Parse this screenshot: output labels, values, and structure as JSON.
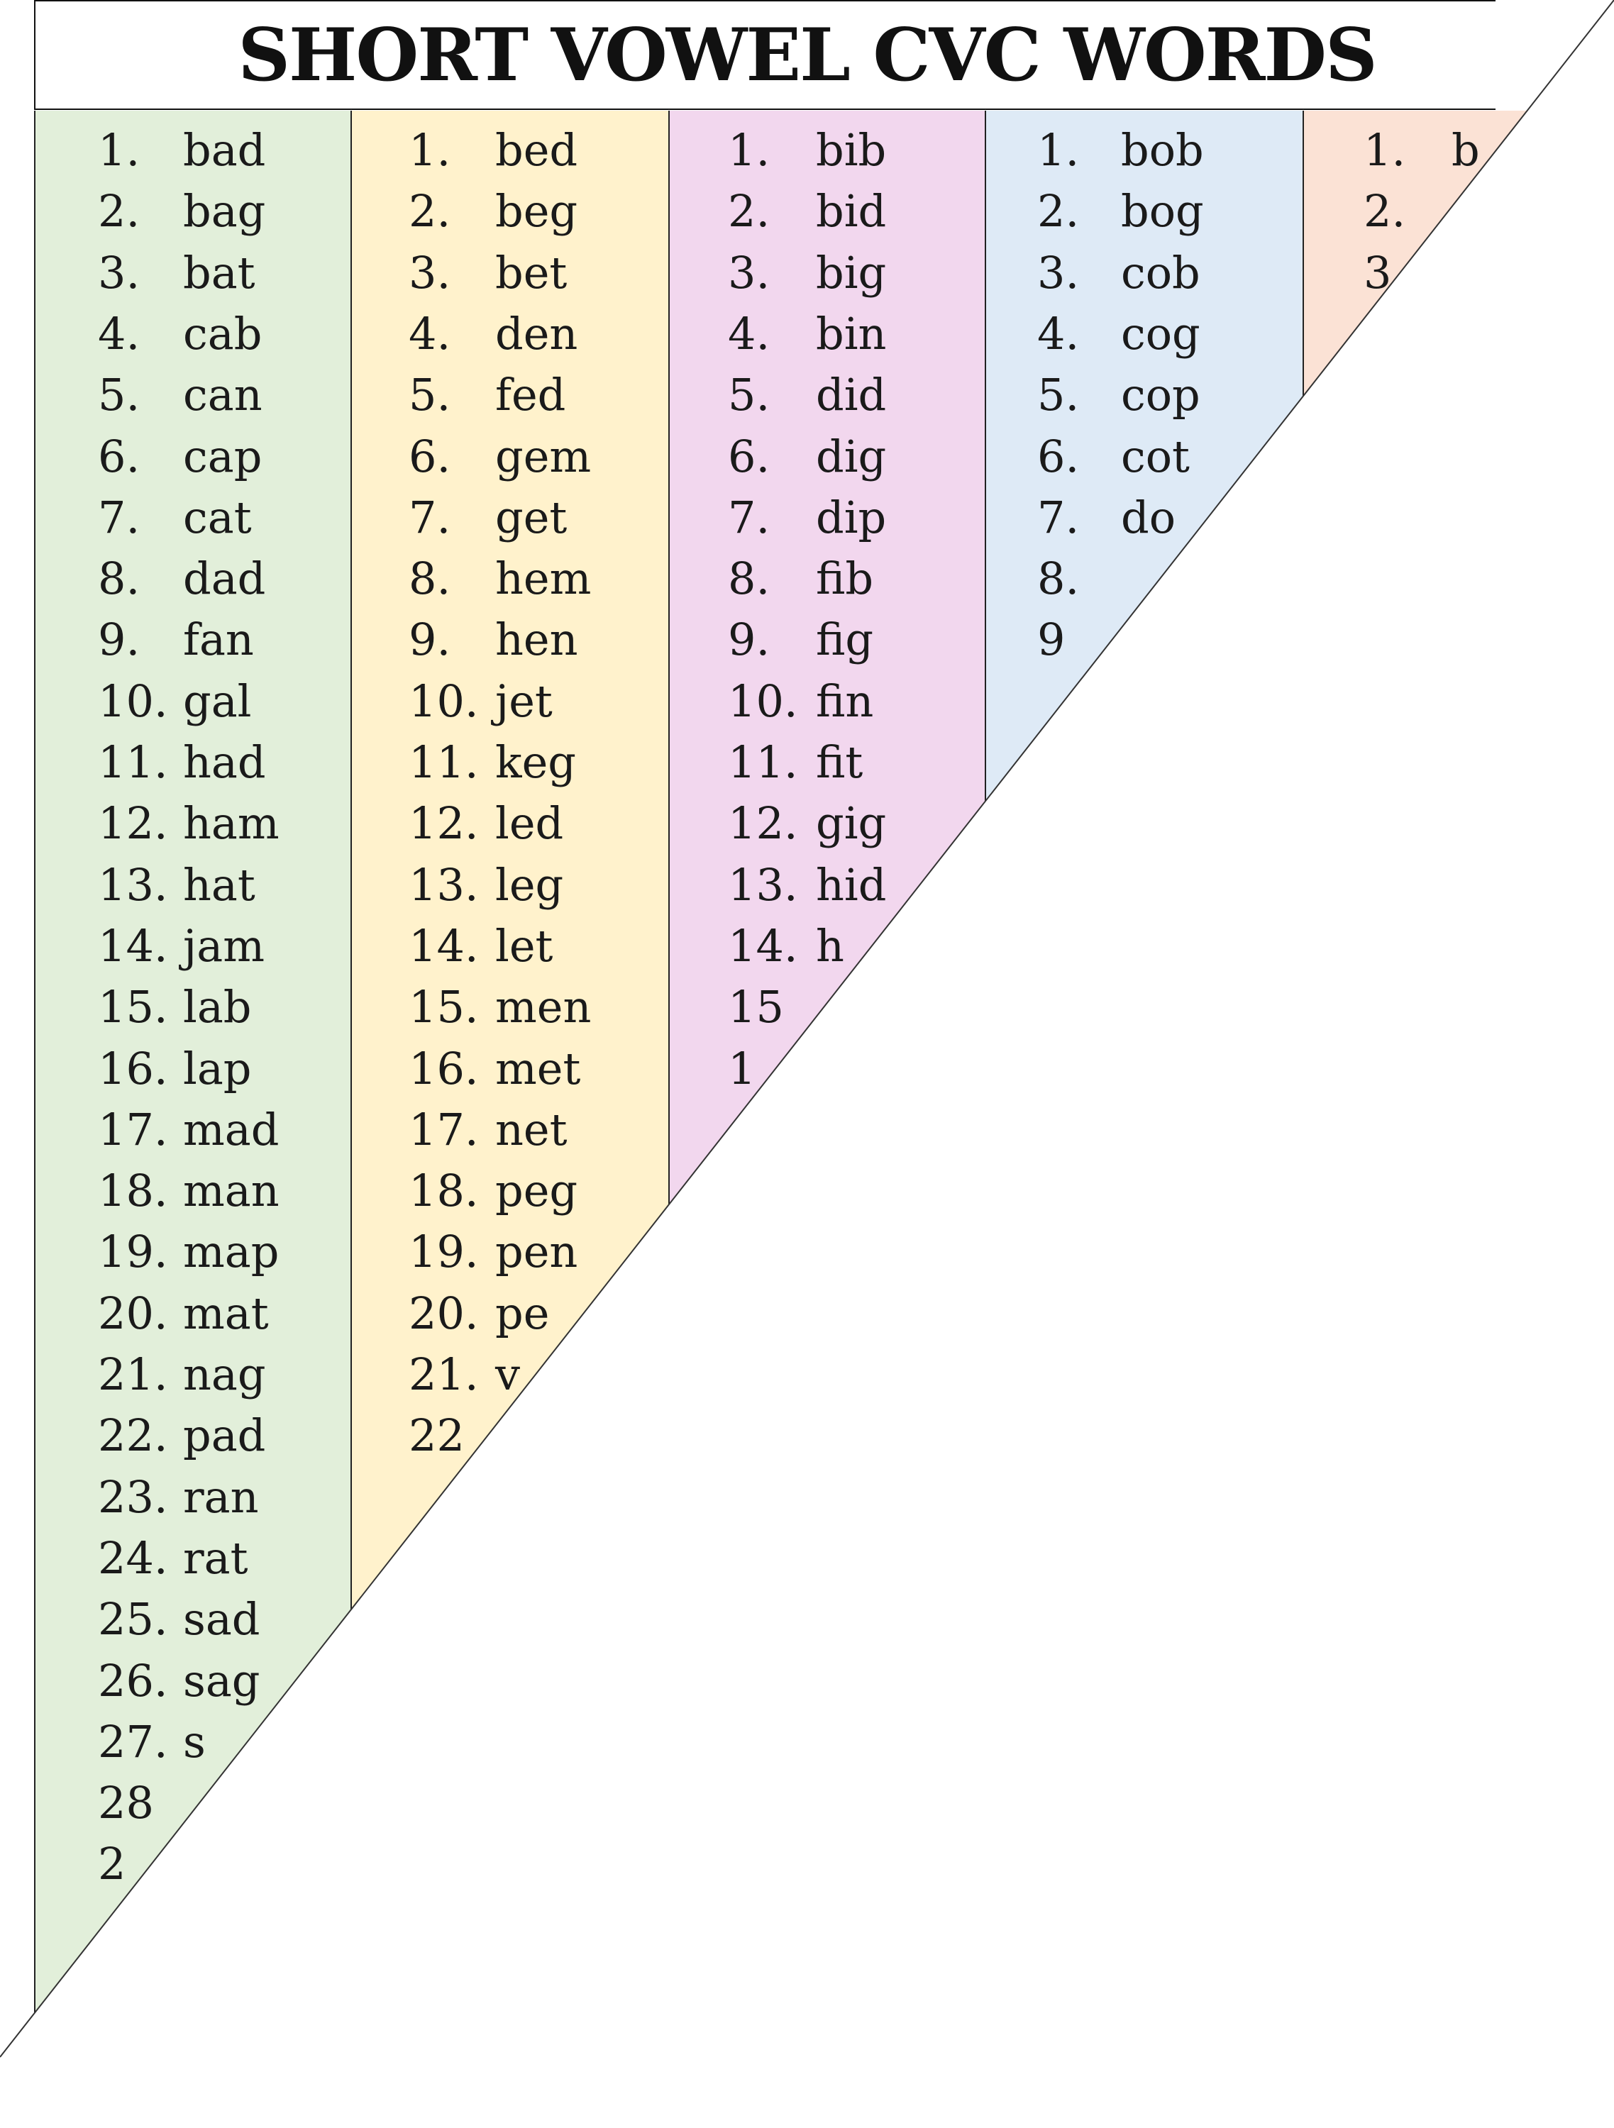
{
  "title": "SHORT VOWEL CVC WORDS",
  "colors": {
    "col_a": "#e2efda",
    "col_e": "#fff2cc",
    "col_i": "#f2d7ee",
    "col_o": "#deeaf6",
    "col_u": "#fbe2d5"
  },
  "columns": [
    {
      "id": "col-a",
      "color": "#e2efda",
      "items": [
        {
          "n": "1.",
          "w": "bad"
        },
        {
          "n": "2.",
          "w": "bag"
        },
        {
          "n": "3.",
          "w": "bat"
        },
        {
          "n": "4.",
          "w": "cab"
        },
        {
          "n": "5.",
          "w": "can"
        },
        {
          "n": "6.",
          "w": "cap"
        },
        {
          "n": "7.",
          "w": "cat"
        },
        {
          "n": "8.",
          "w": "dad"
        },
        {
          "n": "9.",
          "w": "fan"
        },
        {
          "n": "10.",
          "w": "gal"
        },
        {
          "n": "11.",
          "w": "had"
        },
        {
          "n": "12.",
          "w": "ham"
        },
        {
          "n": "13.",
          "w": "hat"
        },
        {
          "n": "14.",
          "w": "jam"
        },
        {
          "n": "15.",
          "w": "lab"
        },
        {
          "n": "16.",
          "w": "lap"
        },
        {
          "n": "17.",
          "w": "mad"
        },
        {
          "n": "18.",
          "w": "man"
        },
        {
          "n": "19.",
          "w": "map"
        },
        {
          "n": "20.",
          "w": "mat"
        },
        {
          "n": "21.",
          "w": "nag"
        },
        {
          "n": "22.",
          "w": "pad"
        },
        {
          "n": "23.",
          "w": "ran"
        },
        {
          "n": "24.",
          "w": "rat"
        },
        {
          "n": "25.",
          "w": "sad"
        },
        {
          "n": "26.",
          "w": "sag"
        },
        {
          "n": "27.",
          "w": "s"
        },
        {
          "n": "28",
          "w": ""
        },
        {
          "n": "2",
          "w": ""
        }
      ]
    },
    {
      "id": "col-e",
      "color": "#fff2cc",
      "items": [
        {
          "n": "1.",
          "w": "bed"
        },
        {
          "n": "2.",
          "w": "beg"
        },
        {
          "n": "3.",
          "w": "bet"
        },
        {
          "n": "4.",
          "w": "den"
        },
        {
          "n": "5.",
          "w": "fed"
        },
        {
          "n": "6.",
          "w": "gem"
        },
        {
          "n": "7.",
          "w": "get"
        },
        {
          "n": "8.",
          "w": "hem"
        },
        {
          "n": "9.",
          "w": "hen"
        },
        {
          "n": "10.",
          "w": "jet"
        },
        {
          "n": "11.",
          "w": "keg"
        },
        {
          "n": "12.",
          "w": "led"
        },
        {
          "n": "13.",
          "w": "leg"
        },
        {
          "n": "14.",
          "w": "let"
        },
        {
          "n": "15.",
          "w": "men"
        },
        {
          "n": "16.",
          "w": "met"
        },
        {
          "n": "17.",
          "w": "net"
        },
        {
          "n": "18.",
          "w": "peg"
        },
        {
          "n": "19.",
          "w": "pen"
        },
        {
          "n": "20.",
          "w": "pe"
        },
        {
          "n": "21.",
          "w": "v"
        },
        {
          "n": "22",
          "w": ""
        }
      ]
    },
    {
      "id": "col-i",
      "color": "#f2d7ee",
      "items": [
        {
          "n": "1.",
          "w": "bib"
        },
        {
          "n": "2.",
          "w": "bid"
        },
        {
          "n": "3.",
          "w": "big"
        },
        {
          "n": "4.",
          "w": "bin"
        },
        {
          "n": "5.",
          "w": "did"
        },
        {
          "n": "6.",
          "w": "dig"
        },
        {
          "n": "7.",
          "w": "dip"
        },
        {
          "n": "8.",
          "w": "fib"
        },
        {
          "n": "9.",
          "w": "fig"
        },
        {
          "n": "10.",
          "w": "fin"
        },
        {
          "n": "11.",
          "w": "fit"
        },
        {
          "n": "12.",
          "w": "gig"
        },
        {
          "n": "13.",
          "w": "hid"
        },
        {
          "n": "14.",
          "w": "h"
        },
        {
          "n": "15",
          "w": ""
        },
        {
          "n": "1",
          "w": ""
        }
      ]
    },
    {
      "id": "col-o",
      "color": "#deeaf6",
      "items": [
        {
          "n": "1.",
          "w": "bob"
        },
        {
          "n": "2.",
          "w": "bog"
        },
        {
          "n": "3.",
          "w": "cob"
        },
        {
          "n": "4.",
          "w": "cog"
        },
        {
          "n": "5.",
          "w": "cop"
        },
        {
          "n": "6.",
          "w": "cot"
        },
        {
          "n": "7.",
          "w": "do"
        },
        {
          "n": "8.",
          "w": ""
        },
        {
          "n": "9",
          "w": ""
        }
      ]
    },
    {
      "id": "col-u",
      "color": "#fbe2d5",
      "items": [
        {
          "n": "1.",
          "w": "b"
        },
        {
          "n": "2.",
          "w": ""
        },
        {
          "n": "3",
          "w": ""
        }
      ]
    }
  ]
}
